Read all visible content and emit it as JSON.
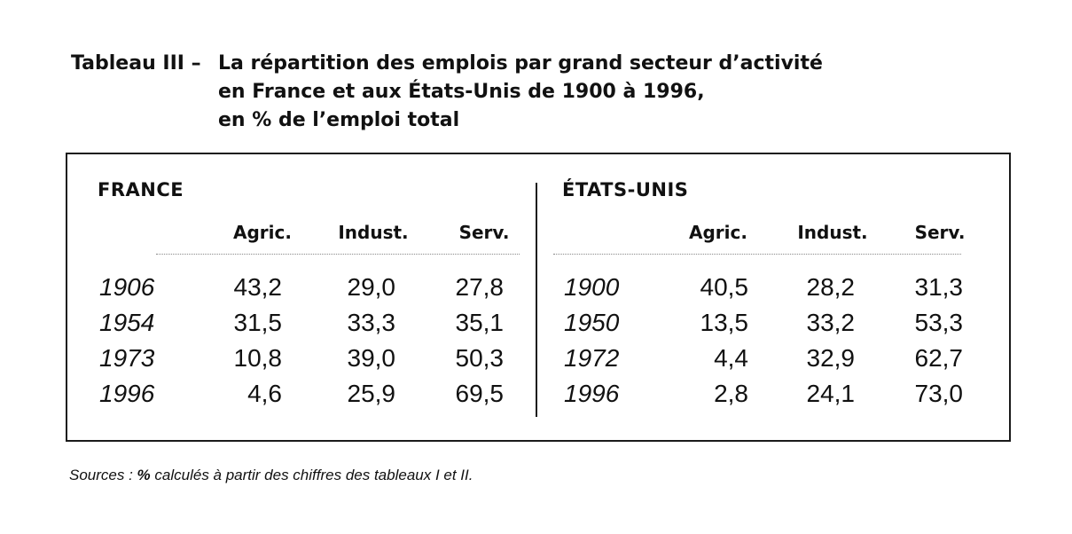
{
  "caption": {
    "label": "Tableau III –",
    "lines": [
      "La répartition des emplois par grand secteur d’activité",
      "en France et aux États-Unis de 1900 à 1996,",
      "en % de l’emploi total"
    ]
  },
  "france": {
    "title": "FRANCE",
    "columns": [
      "Agric.",
      "Indust.",
      "Serv."
    ],
    "rows": [
      {
        "year": "1906",
        "values": [
          "43,2",
          "29,0",
          "27,8"
        ]
      },
      {
        "year": "1954",
        "values": [
          "31,5",
          "33,3",
          "35,1"
        ]
      },
      {
        "year": "1973",
        "values": [
          "10,8",
          "39,0",
          "50,3"
        ]
      },
      {
        "year": "1996",
        "values": [
          "4,6",
          "25,9",
          "69,5"
        ]
      }
    ]
  },
  "usa": {
    "title": "ÉTATS-UNIS",
    "columns": [
      "Agric.",
      "Indust.",
      "Serv."
    ],
    "rows": [
      {
        "year": "1900",
        "values": [
          "40,5",
          "28,2",
          "31,3"
        ]
      },
      {
        "year": "1950",
        "values": [
          "13,5",
          "33,2",
          "53,3"
        ]
      },
      {
        "year": "1972",
        "values": [
          "4,4",
          "32,9",
          "62,7"
        ]
      },
      {
        "year": "1996",
        "values": [
          "2,8",
          "24,1",
          "73,0"
        ]
      }
    ]
  },
  "sources": {
    "prefix": "Sources :",
    "symbol": "%",
    "text": "calculés à partir des chiffres des tableaux I et II."
  }
}
